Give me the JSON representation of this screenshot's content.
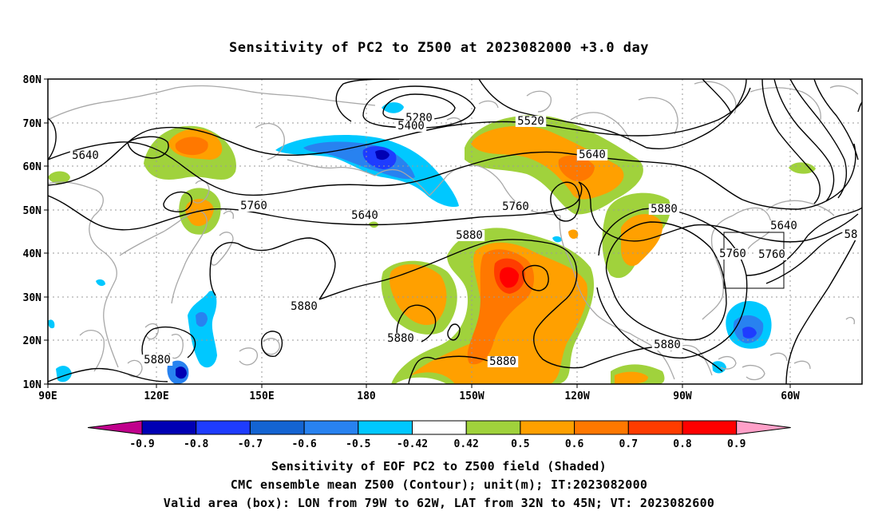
{
  "title": "Sensitivity of PC2 to Z500 at 2023082000 +3.0 day",
  "map": {
    "lat_labels": [
      "80N",
      "70N",
      "60N",
      "50N",
      "40N",
      "30N",
      "20N",
      "10N"
    ],
    "lon_labels": [
      "90E",
      "120E",
      "150E",
      "180",
      "150W",
      "120W",
      "90W",
      "60W"
    ],
    "contour_labels": [
      "5280",
      "5400",
      "5520",
      "5640",
      "5640",
      "5640",
      "5640",
      "5760",
      "5760",
      "5760",
      "5760",
      "5880",
      "5880",
      "5880",
      "5880",
      "5880",
      "5880",
      "5880",
      "58"
    ],
    "box": {
      "lon_min": "79W",
      "lon_max": "62W",
      "lat_min": "32N",
      "lat_max": "45N"
    }
  },
  "colorbar": {
    "labels": [
      "-0.9",
      "-0.8",
      "-0.7",
      "-0.6",
      "-0.5",
      "-0.42",
      "0.42",
      "0.5",
      "0.6",
      "0.7",
      "0.8",
      "0.9"
    ],
    "colors": [
      "#c0008c",
      "#0000b4",
      "#1e3cff",
      "#1464d2",
      "#2882f0",
      "#00c8ff",
      "#ffffff",
      "#a0d23c",
      "#ffa000",
      "#ff7800",
      "#ff3c00",
      "#ff0000",
      "#ffa0c8"
    ]
  },
  "footer": {
    "line1": "Sensitivity of EOF PC2 to Z500 field (Shaded)",
    "line2": "CMC ensemble mean Z500 (Contour); unit(m); IT:2023082000",
    "line3": "Valid area (box): LON from 79W to 62W, LAT from 32N to 45N; VT: 2023082600"
  }
}
